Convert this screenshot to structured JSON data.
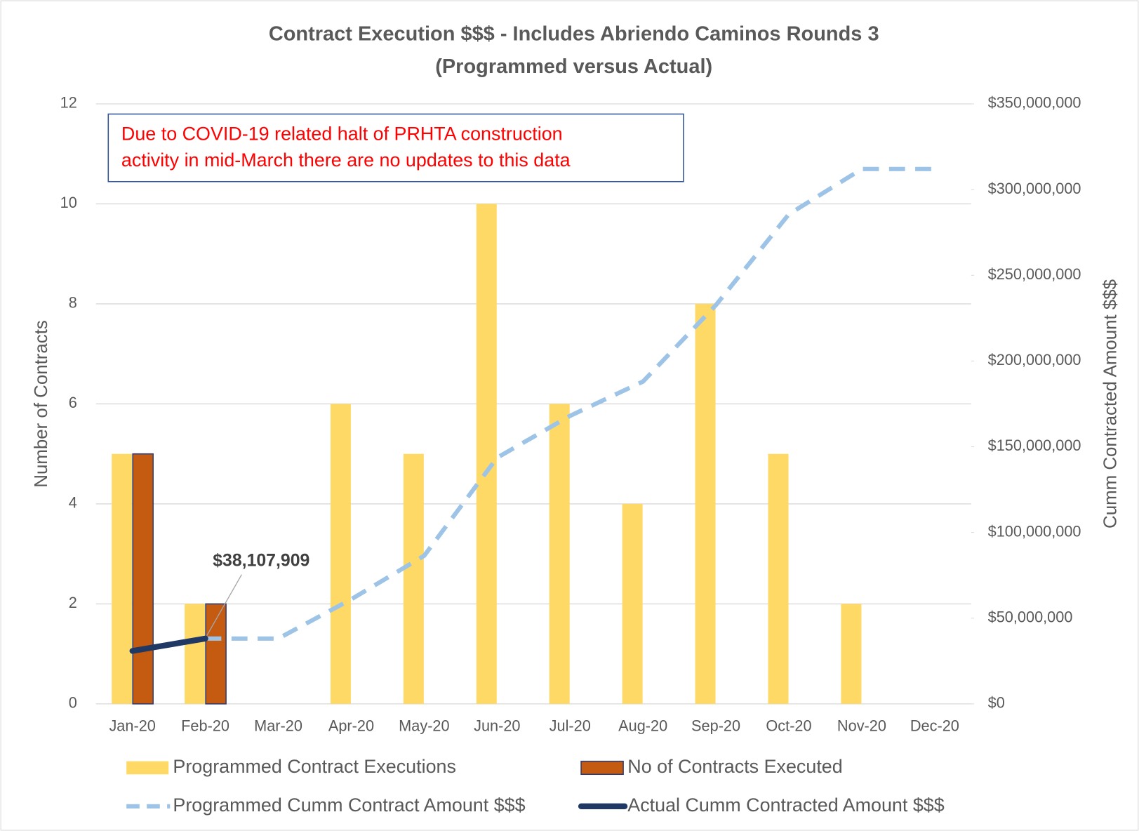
{
  "chart_data": {
    "type": "bar",
    "title": "Contract Execution $$$ - Includes Abriendo Caminos Rounds 3",
    "subtitle": "(Programmed versus Actual)",
    "annotation": [
      "Due to COVID-19 related halt of PRHTA construction",
      "activity in mid-March there are no updates to this data"
    ],
    "ylabel": "Number of Contracts",
    "y2label": "Cumm Contracted Amount  $$$",
    "categories": [
      "Jan-20",
      "Feb-20",
      "Mar-20",
      "Apr-20",
      "May-20",
      "Jun-20",
      "Jul-20",
      "Aug-20",
      "Sep-20",
      "Oct-20",
      "Nov-20",
      "Dec-20"
    ],
    "ylim": [
      0,
      12
    ],
    "yticks": [
      0,
      2,
      4,
      6,
      8,
      10,
      12
    ],
    "y2lim": [
      0,
      350000000
    ],
    "y2ticks": [
      {
        "value": 0,
        "label": "$0"
      },
      {
        "value": 50000000,
        "label": "$50,000,000"
      },
      {
        "value": 100000000,
        "label": "$100,000,000"
      },
      {
        "value": 150000000,
        "label": "$150,000,000"
      },
      {
        "value": 200000000,
        "label": "$200,000,000"
      },
      {
        "value": 250000000,
        "label": "$250,000,000"
      },
      {
        "value": 300000000,
        "label": "$300,000,000"
      },
      {
        "value": 350000000,
        "label": "$350,000,000"
      }
    ],
    "grid": true,
    "series": [
      {
        "name": "Programmed Contract Executions",
        "type": "bar",
        "color": "#ffd966",
        "values": [
          5,
          2,
          0,
          6,
          5,
          10,
          6,
          4,
          8,
          5,
          2,
          0
        ]
      },
      {
        "name": "No of Contracts Executed",
        "type": "bar",
        "color": "#c55a11",
        "edge_color": "#2f3c6e",
        "values": [
          5,
          2,
          null,
          null,
          null,
          null,
          null,
          null,
          null,
          null,
          null,
          null
        ]
      },
      {
        "name": "Programmed Cumm Contract Amount $$$",
        "type": "line",
        "axis": "y2",
        "color": "#9dc3e6",
        "line_style": "dashed",
        "values": [
          null,
          38107909,
          38107909,
          61000000,
          86400000,
          143600000,
          168000000,
          188000000,
          232600000,
          285600000,
          312000000,
          312000000
        ]
      },
      {
        "name": "Actual Cumm Contracted Amount $$$",
        "type": "line",
        "axis": "y2",
        "color": "#1f3864",
        "line_style": "solid",
        "values": [
          30900000,
          38107909,
          null,
          null,
          null,
          null,
          null,
          null,
          null,
          null,
          null,
          null
        ],
        "value_labels": [
          null,
          "$38,107,909",
          null,
          null,
          null,
          null,
          null,
          null,
          null,
          null,
          null,
          null
        ]
      }
    ]
  }
}
